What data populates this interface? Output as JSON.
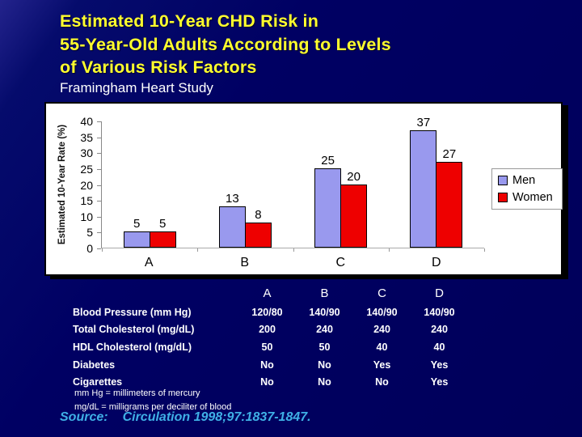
{
  "slide": {
    "title_lines": [
      "Estimated 10-Year CHD Risk in",
      "55-Year-Old Adults According to Levels",
      "of Various Risk Factors"
    ],
    "subtitle": "Framingham Heart Study",
    "title_color": "#ffff2e",
    "background_color": "#000063"
  },
  "chart_data": {
    "type": "bar",
    "title": "",
    "categories": [
      "A",
      "B",
      "C",
      "D"
    ],
    "series": [
      {
        "name": "Men",
        "color": "#9999ee",
        "values": [
          5,
          13,
          25,
          37
        ]
      },
      {
        "name": "Women",
        "color": "#ee0000",
        "values": [
          5,
          8,
          20,
          27
        ]
      }
    ],
    "ylabel": "Estimated 10-Year Rate (%)",
    "ylim": [
      0,
      40
    ],
    "yticks": [
      0,
      5,
      10,
      15,
      20,
      25,
      30,
      35,
      40
    ],
    "grid": false,
    "legend_position": "right",
    "data_labels": true
  },
  "table": {
    "column_headers": [
      "A",
      "B",
      "C",
      "D"
    ],
    "rows": [
      {
        "label": "Blood Pressure (mm Hg)",
        "values": [
          "120/80",
          "140/90",
          "140/90",
          "140/90"
        ]
      },
      {
        "label": "Total Cholesterol (mg/dL)",
        "values": [
          "200",
          "240",
          "240",
          "240"
        ]
      },
      {
        "label": "HDL Cholesterol (mg/dL)",
        "values": [
          "50",
          "50",
          "40",
          "40"
        ]
      },
      {
        "label": "Diabetes",
        "values": [
          "No",
          "No",
          "Yes",
          "Yes"
        ]
      },
      {
        "label": "Cigarettes",
        "values": [
          "No",
          "No",
          "No",
          "Yes"
        ]
      }
    ]
  },
  "footnotes": [
    "mm Hg = millimeters of mercury",
    "mg/dL  = milligrams per deciliter of blood"
  ],
  "source": {
    "label": "Source:",
    "citation": "Circulation 1998;97:1837-1847."
  }
}
